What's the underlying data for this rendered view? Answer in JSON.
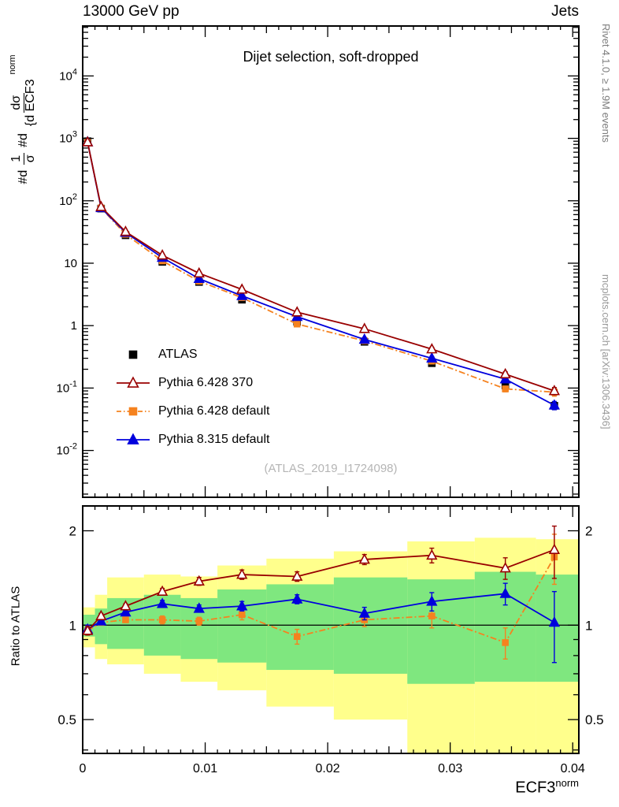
{
  "header": {
    "left": "13000 GeV pp",
    "right": "Jets"
  },
  "plot_title": "Dijet selection, soft-dropped",
  "watermark": "(ATLAS_2019_I1724098)",
  "side_labels": {
    "top": "Rivet 4.1.0, ≥ 1.9M events",
    "bottom": "mcplots.cern.ch [arXiv:1306.3436]"
  },
  "axes": {
    "xlabel": "ECF3",
    "xlabel_sup": "norm",
    "ylabel_ratio": "Ratio to ATLAS",
    "ylabel_main": {
      "d1": "#d",
      "num1": "1",
      "den1": "σ",
      "d2": "#d",
      "num2": "dσ",
      "den2": "{d ECF3",
      "sup": "norm"
    },
    "x_range": [
      0,
      0.0405
    ],
    "x_tick_values": [
      0,
      0.01,
      0.02,
      0.03,
      0.04
    ],
    "x_tick_labels": [
      "0",
      "0.01",
      "0.02",
      "0.03",
      "0.04"
    ],
    "x_minor_step": 0.001,
    "x_medium_step": 0.005,
    "main_y_exponents": [
      4,
      3,
      2,
      1,
      0,
      -1,
      -2
    ],
    "main_y_range_exp": [
      -2.75,
      4.8
    ],
    "ratio_y_ticks": [
      2,
      1,
      0.5
    ],
    "ratio_y_tick_labels": [
      "2",
      "1",
      "0.5"
    ],
    "ratio_y_range": [
      0.39,
      2.4
    ]
  },
  "legend": [
    {
      "label": "ATLAS",
      "marker": "square",
      "color": "#000000",
      "line": "none"
    },
    {
      "label": "Pythia 6.428 370",
      "marker": "triangle-open",
      "color": "#990000",
      "line": "solid"
    },
    {
      "label": "Pythia 6.428 default",
      "marker": "square",
      "color": "#f5821f",
      "line": "dashdot"
    },
    {
      "label": "Pythia 8.315 default",
      "marker": "triangle",
      "color": "#0000dd",
      "line": "solid"
    }
  ],
  "colors": {
    "atlas": "#000000",
    "pythia6_370": "#990000",
    "pythia6_default": "#f5821f",
    "pythia8_default": "#0000dd",
    "band_yellow": "#ffff8c",
    "band_green": "#7fe77f",
    "watermark": "#b5b5b5"
  },
  "chart_data": {
    "type": "line",
    "title": "Dijet selection, soft-dropped",
    "xlabel": "ECF3^norm",
    "x": [
      0.0004,
      0.0015,
      0.0035,
      0.0065,
      0.0095,
      0.013,
      0.0175,
      0.023,
      0.0285,
      0.0345,
      0.0385
    ],
    "main_panel": {
      "ylog": true,
      "ylim_exp": [
        -2.75,
        4.8
      ],
      "series": [
        {
          "name": "ATLAS",
          "values": [
            900,
            75,
            28,
            10.5,
            5.0,
            2.6,
            1.15,
            0.55,
            0.25,
            0.11,
            0.052
          ],
          "errors": [
            80,
            6,
            2,
            0.8,
            0.35,
            0.18,
            0.09,
            0.045,
            0.022,
            0.012,
            0.007
          ]
        },
        {
          "name": "Pythia 6.428 370",
          "values": [
            870,
            80,
            32,
            13.4,
            6.9,
            3.8,
            1.64,
            0.89,
            0.42,
            0.167,
            0.09
          ],
          "errors": [
            60,
            5,
            1.5,
            0.6,
            0.3,
            0.15,
            0.08,
            0.05,
            0.03,
            0.015,
            0.012
          ]
        },
        {
          "name": "Pythia 6.428 default",
          "values": [
            865,
            76.5,
            29,
            10.9,
            5.15,
            2.81,
            1.06,
            0.57,
            0.27,
            0.097,
            0.086
          ],
          "errors": [
            60,
            5,
            1.5,
            0.6,
            0.25,
            0.15,
            0.07,
            0.04,
            0.02,
            0.01,
            0.012
          ]
        },
        {
          "name": "Pythia 8.315 default",
          "values": [
            875,
            77,
            31,
            12.3,
            5.65,
            3.0,
            1.39,
            0.6,
            0.3,
            0.139,
            0.053
          ],
          "errors": [
            60,
            5,
            1.5,
            0.6,
            0.25,
            0.15,
            0.07,
            0.04,
            0.02,
            0.012,
            0.008
          ]
        }
      ]
    },
    "ratio_panel": {
      "reference": 1,
      "series": [
        {
          "name": "Pythia 6.428 370",
          "values": [
            0.96,
            1.07,
            1.15,
            1.28,
            1.38,
            1.45,
            1.43,
            1.62,
            1.67,
            1.52,
            1.74
          ],
          "errors": [
            0.03,
            0.02,
            0.02,
            0.03,
            0.04,
            0.05,
            0.05,
            0.06,
            0.09,
            0.12,
            0.33
          ]
        },
        {
          "name": "Pythia 6.428 default",
          "values": [
            0.96,
            1.02,
            1.04,
            1.04,
            1.03,
            1.08,
            0.92,
            1.04,
            1.07,
            0.88,
            1.65
          ],
          "errors": [
            0.03,
            0.02,
            0.02,
            0.03,
            0.03,
            0.04,
            0.05,
            0.05,
            0.09,
            0.1,
            0.3
          ]
        },
        {
          "name": "Pythia 8.315 default",
          "values": [
            0.97,
            1.03,
            1.1,
            1.17,
            1.13,
            1.15,
            1.21,
            1.09,
            1.19,
            1.26,
            1.02
          ],
          "errors": [
            0.03,
            0.02,
            0.02,
            0.03,
            0.03,
            0.04,
            0.04,
            0.05,
            0.08,
            0.1,
            0.26
          ]
        }
      ],
      "bands": {
        "edges": [
          0,
          0.001,
          0.002,
          0.005,
          0.008,
          0.011,
          0.015,
          0.0205,
          0.0265,
          0.032,
          0.037,
          0.0405
        ],
        "yellow_lo": [
          0.85,
          0.78,
          0.75,
          0.7,
          0.66,
          0.62,
          0.55,
          0.5,
          0.36,
          0.36,
          0.36
        ],
        "yellow_hi": [
          1.14,
          1.25,
          1.42,
          1.45,
          1.43,
          1.55,
          1.63,
          1.72,
          1.85,
          1.9,
          1.88
        ],
        "green_lo": [
          0.92,
          0.87,
          0.84,
          0.8,
          0.78,
          0.76,
          0.72,
          0.7,
          0.65,
          0.66,
          0.66
        ],
        "green_hi": [
          1.08,
          1.13,
          1.22,
          1.25,
          1.22,
          1.3,
          1.35,
          1.42,
          1.4,
          1.48,
          1.45
        ]
      }
    }
  }
}
